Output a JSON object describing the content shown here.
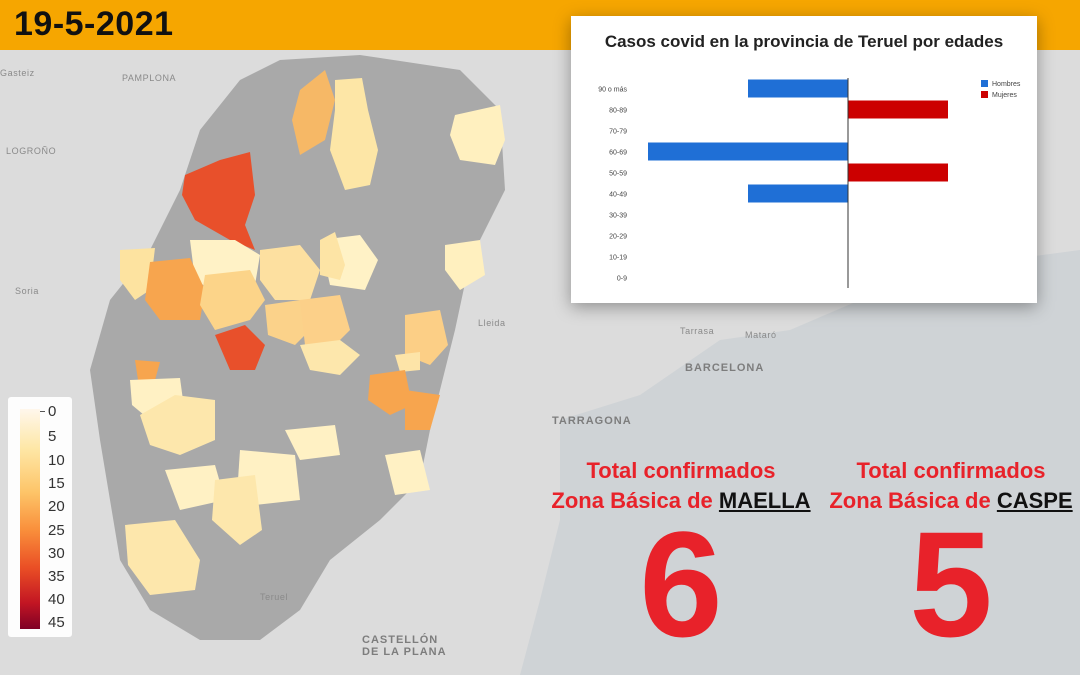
{
  "header": {
    "date": "19-5-2021"
  },
  "map_labels": [
    "Gasteiz",
    "PAMPLONA",
    "LOGROÑO",
    "Soria",
    "Lleida",
    "Tarrasa",
    "Mataró",
    "BARCELONA",
    "TARRAGONA",
    "Teruel",
    "CASTELLÓN",
    "DE LA PLANA"
  ],
  "legend": {
    "ticks": [
      "0",
      "5",
      "10",
      "15",
      "20",
      "25",
      "30",
      "35",
      "40",
      "45"
    ]
  },
  "chart_data": {
    "type": "bar",
    "orientation": "horizontal",
    "title": "Casos covid en la provincia de Teruel por edades",
    "categories": [
      "90 o más",
      "80-89",
      "70-79",
      "60-69",
      "50-59",
      "40-49",
      "30-39",
      "20-29",
      "10-19",
      "0-9"
    ],
    "series": [
      {
        "name": "Hombres",
        "color": "#1f6fd6",
        "values": [
          1,
          0,
          0,
          2,
          0,
          1,
          0,
          0,
          0,
          0
        ]
      },
      {
        "name": "Mujeres",
        "color": "#cc0000",
        "values": [
          0,
          1,
          0,
          0,
          1,
          0,
          0,
          0,
          0,
          0
        ]
      }
    ],
    "legend_position": "top-right"
  },
  "stats": [
    {
      "line1": "Total confirmados",
      "line2_prefix": "Zona Básica de ",
      "zone": "MAELLA",
      "value": "6"
    },
    {
      "line1": "Total confirmados",
      "line2_prefix": "Zona Básica de ",
      "zone": "CASPE",
      "value": "5"
    }
  ]
}
